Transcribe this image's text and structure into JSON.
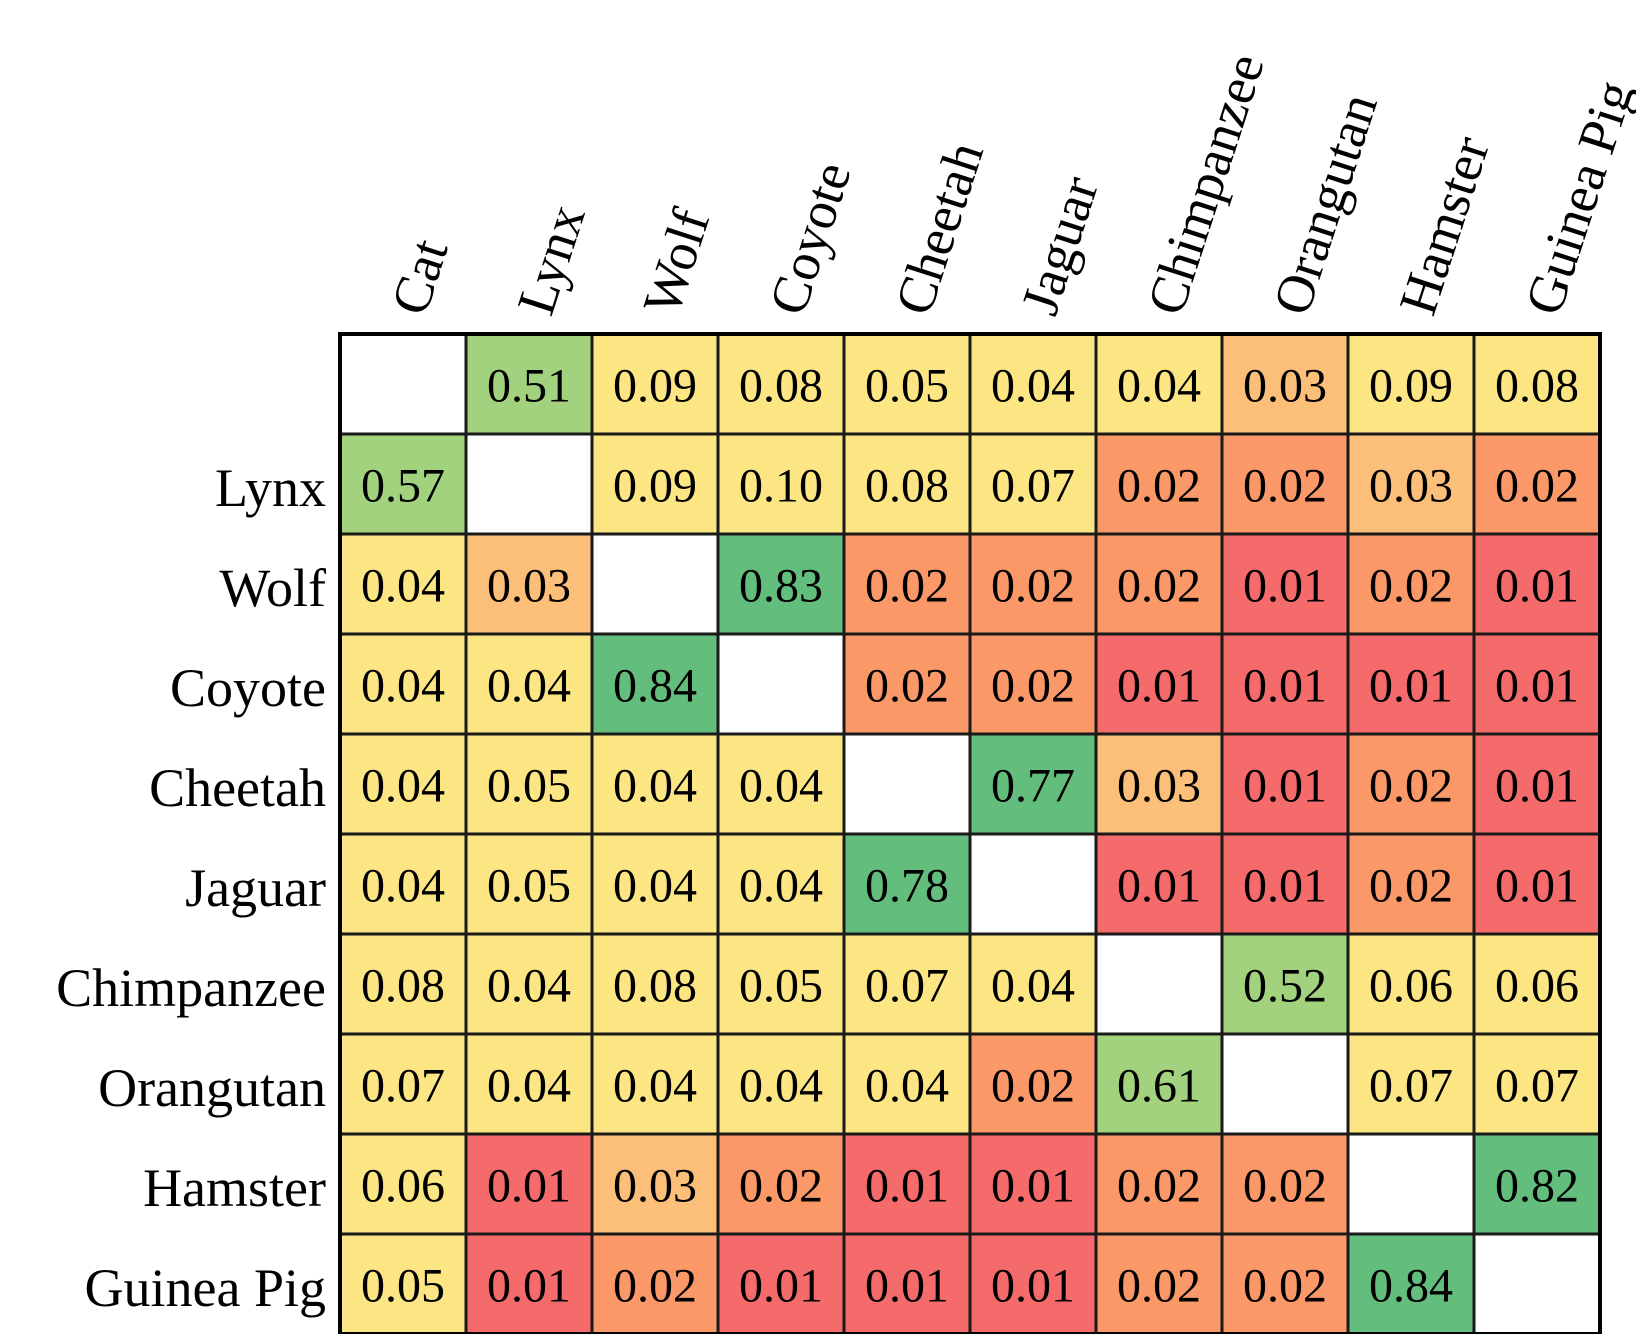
{
  "chart_data": {
    "type": "heatmap",
    "title": "",
    "columns": [
      "Cat",
      "Lynx",
      "Wolf",
      "Coyote",
      "Cheetah",
      "Jaguar",
      "Chimpanzee",
      "Orangutan",
      "Hamster",
      "Guinea Pig"
    ],
    "rows": [
      "",
      "Lynx",
      "Wolf",
      "Coyote",
      "Cheetah",
      "Jaguar",
      "Chimpanzee",
      "Orangutan",
      "Hamster",
      "Guinea Pig"
    ],
    "values": [
      [
        null,
        0.51,
        0.09,
        0.08,
        0.05,
        0.04,
        0.04,
        0.03,
        0.09,
        0.08
      ],
      [
        0.57,
        null,
        0.09,
        0.1,
        0.08,
        0.07,
        0.02,
        0.02,
        0.03,
        0.02
      ],
      [
        0.04,
        0.03,
        null,
        0.83,
        0.02,
        0.02,
        0.02,
        0.01,
        0.02,
        0.01
      ],
      [
        0.04,
        0.04,
        0.84,
        null,
        0.02,
        0.02,
        0.01,
        0.01,
        0.01,
        0.01
      ],
      [
        0.04,
        0.05,
        0.04,
        0.04,
        null,
        0.77,
        0.03,
        0.01,
        0.02,
        0.01
      ],
      [
        0.04,
        0.05,
        0.04,
        0.04,
        0.78,
        null,
        0.01,
        0.01,
        0.02,
        0.01
      ],
      [
        0.08,
        0.04,
        0.08,
        0.05,
        0.07,
        0.04,
        null,
        0.52,
        0.06,
        0.06
      ],
      [
        0.07,
        0.04,
        0.04,
        0.04,
        0.04,
        0.02,
        0.61,
        null,
        0.07,
        0.07
      ],
      [
        0.06,
        0.01,
        0.03,
        0.02,
        0.01,
        0.01,
        0.02,
        0.02,
        null,
        0.82
      ],
      [
        0.05,
        0.01,
        0.02,
        0.01,
        0.01,
        0.01,
        0.02,
        0.02,
        0.84,
        null
      ]
    ],
    "value_format": "2 decimals",
    "colormap": {
      "low": "#f56a6a",
      "mid_low": "#fa9868",
      "mid": "#fbbf7a",
      "mid_high": "#fbe683",
      "high_green": "#a2d27e",
      "top_green": "#63bd7c",
      "diagonal": "#ffffff"
    },
    "column_label_rotation": "tilted upward",
    "legend": "none",
    "grid": true
  }
}
